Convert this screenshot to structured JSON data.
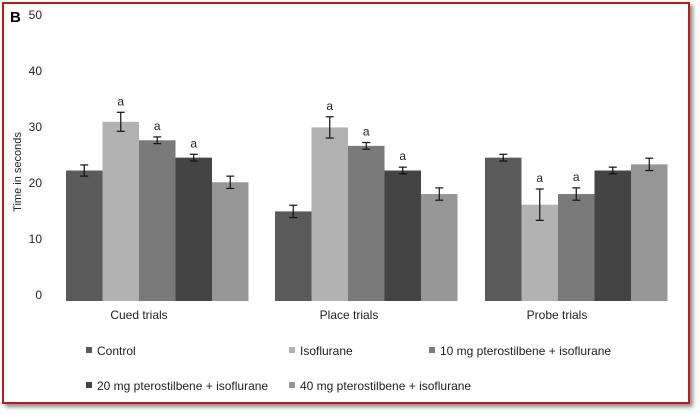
{
  "chart_data": {
    "type": "bar",
    "panel_label": "B",
    "title": "",
    "xlabel": "",
    "ylabel": "Time in seconds",
    "ylim": [
      0,
      50
    ],
    "yticks": [
      0,
      10,
      20,
      30,
      40,
      50
    ],
    "grid": false,
    "legend_position": "bottom",
    "categories": [
      "Cued trials",
      "Place trials",
      "Probe trials"
    ],
    "series": [
      {
        "name": "Control",
        "color": "#5a5a5a",
        "values": [
          23.3,
          16.0,
          25.6
        ],
        "errors": [
          1.0,
          1.1,
          0.6
        ],
        "annotations": [
          "",
          "",
          ""
        ]
      },
      {
        "name": "Isoflurane",
        "color": "#b2b2b2",
        "values": [
          32.0,
          31.0,
          17.2
        ],
        "errors": [
          1.7,
          1.9,
          2.8
        ],
        "annotations": [
          "a",
          "a",
          "a"
        ]
      },
      {
        "name": "10 mg pterostilbene + isoflurane",
        "color": "#7a7a7a",
        "values": [
          28.7,
          27.7,
          19.1
        ],
        "errors": [
          0.6,
          0.6,
          1.1
        ],
        "annotations": [
          "a",
          "a",
          "a"
        ]
      },
      {
        "name": "20 mg pterostilbene + isoflurane",
        "color": "#444444",
        "values": [
          25.6,
          23.3,
          23.3
        ],
        "errors": [
          0.6,
          0.6,
          0.6
        ],
        "annotations": [
          "a",
          "a",
          ""
        ]
      },
      {
        "name": "40 mg pterostilbene + isoflurane",
        "color": "#969696",
        "values": [
          21.2,
          19.1,
          24.4
        ],
        "errors": [
          1.1,
          1.1,
          1.1
        ],
        "annotations": [
          "",
          "",
          ""
        ]
      }
    ]
  }
}
